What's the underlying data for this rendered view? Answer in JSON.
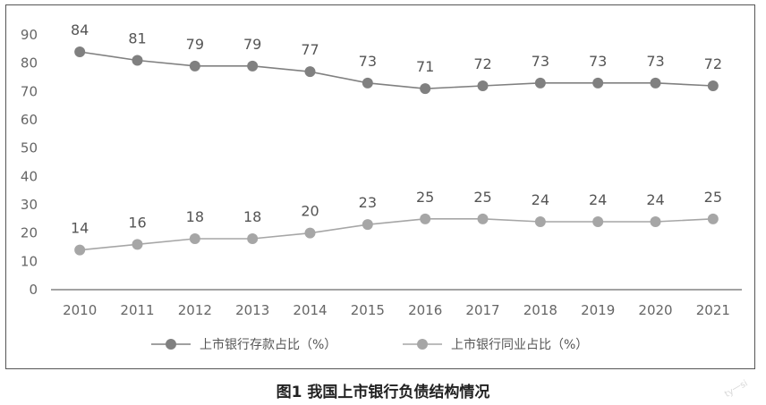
{
  "chart_data": {
    "type": "line",
    "title": "",
    "xlabel": "",
    "ylabel": "",
    "categories": [
      "2010",
      "2011",
      "2012",
      "2013",
      "2014",
      "2015",
      "2016",
      "2017",
      "2018",
      "2019",
      "2020",
      "2021"
    ],
    "ylim": [
      0,
      90
    ],
    "yticks": [
      0,
      10,
      20,
      30,
      40,
      50,
      60,
      70,
      80,
      90
    ],
    "grid": false,
    "legend_position": "bottom",
    "series": [
      {
        "name": "上市银行存款占比（%）",
        "values": [
          84,
          81,
          79,
          79,
          77,
          73,
          71,
          72,
          73,
          73,
          73,
          72
        ],
        "color": "#808080"
      },
      {
        "name": "上市银行同业占比（%）",
        "values": [
          14,
          16,
          18,
          18,
          20,
          23,
          25,
          25,
          24,
          24,
          24,
          25
        ],
        "color": "#a6a6a6"
      }
    ]
  },
  "caption": "图1  我国上市银行负债结构情况",
  "watermark": "ty一si"
}
